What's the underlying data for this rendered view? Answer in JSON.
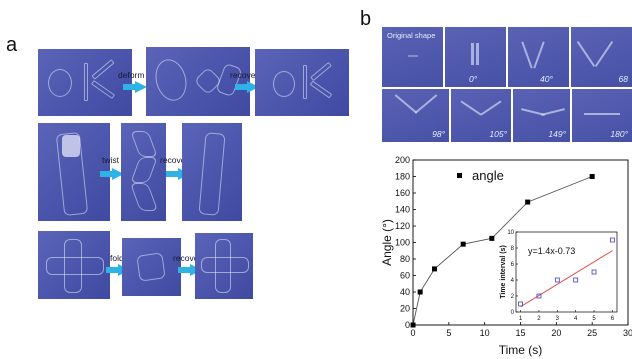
{
  "panel_a": {
    "letter": "a",
    "rows": [
      {
        "action": "deform",
        "recover": "recover"
      },
      {
        "action": "twist",
        "recover": "recover"
      },
      {
        "action": "fold",
        "recover": "recover"
      }
    ]
  },
  "panel_b": {
    "letter": "b",
    "original_label": "Original shape",
    "angle_labels": [
      "0°",
      "40°",
      "68",
      "98°",
      "105°",
      "149°",
      "180°"
    ]
  },
  "chart_data": [
    {
      "type": "line",
      "title": "",
      "xlabel": "Time (s)",
      "ylabel": "Angle (°)",
      "xlim": [
        0,
        30
      ],
      "ylim": [
        0,
        200
      ],
      "xticks": [
        0,
        5,
        10,
        15,
        20,
        25,
        30
      ],
      "yticks": [
        0,
        20,
        40,
        60,
        80,
        100,
        120,
        140,
        160,
        180,
        200
      ],
      "legend": "top-left",
      "series": [
        {
          "name": "angle",
          "marker": "square",
          "color": "#000000",
          "x": [
            0,
            1,
            3,
            7,
            11,
            16,
            25
          ],
          "y": [
            0,
            40,
            68,
            98,
            105,
            149,
            180
          ]
        }
      ]
    },
    {
      "type": "scatter",
      "title": "",
      "xlabel": "",
      "ylabel": "Time interval (s)",
      "xlim": [
        1,
        6
      ],
      "ylim": [
        0,
        10
      ],
      "xticks": [
        1,
        2,
        3,
        4,
        5,
        6
      ],
      "yticks": [
        0,
        2,
        4,
        6,
        8,
        10
      ],
      "annotation": "y=1.4x-0.73",
      "fit_color": "#e05050",
      "series": [
        {
          "marker": "open-square",
          "color": "#4040c0",
          "x": [
            1,
            2,
            3,
            4,
            5,
            6
          ],
          "y": [
            1,
            2,
            4,
            4,
            5,
            9
          ]
        }
      ]
    }
  ]
}
